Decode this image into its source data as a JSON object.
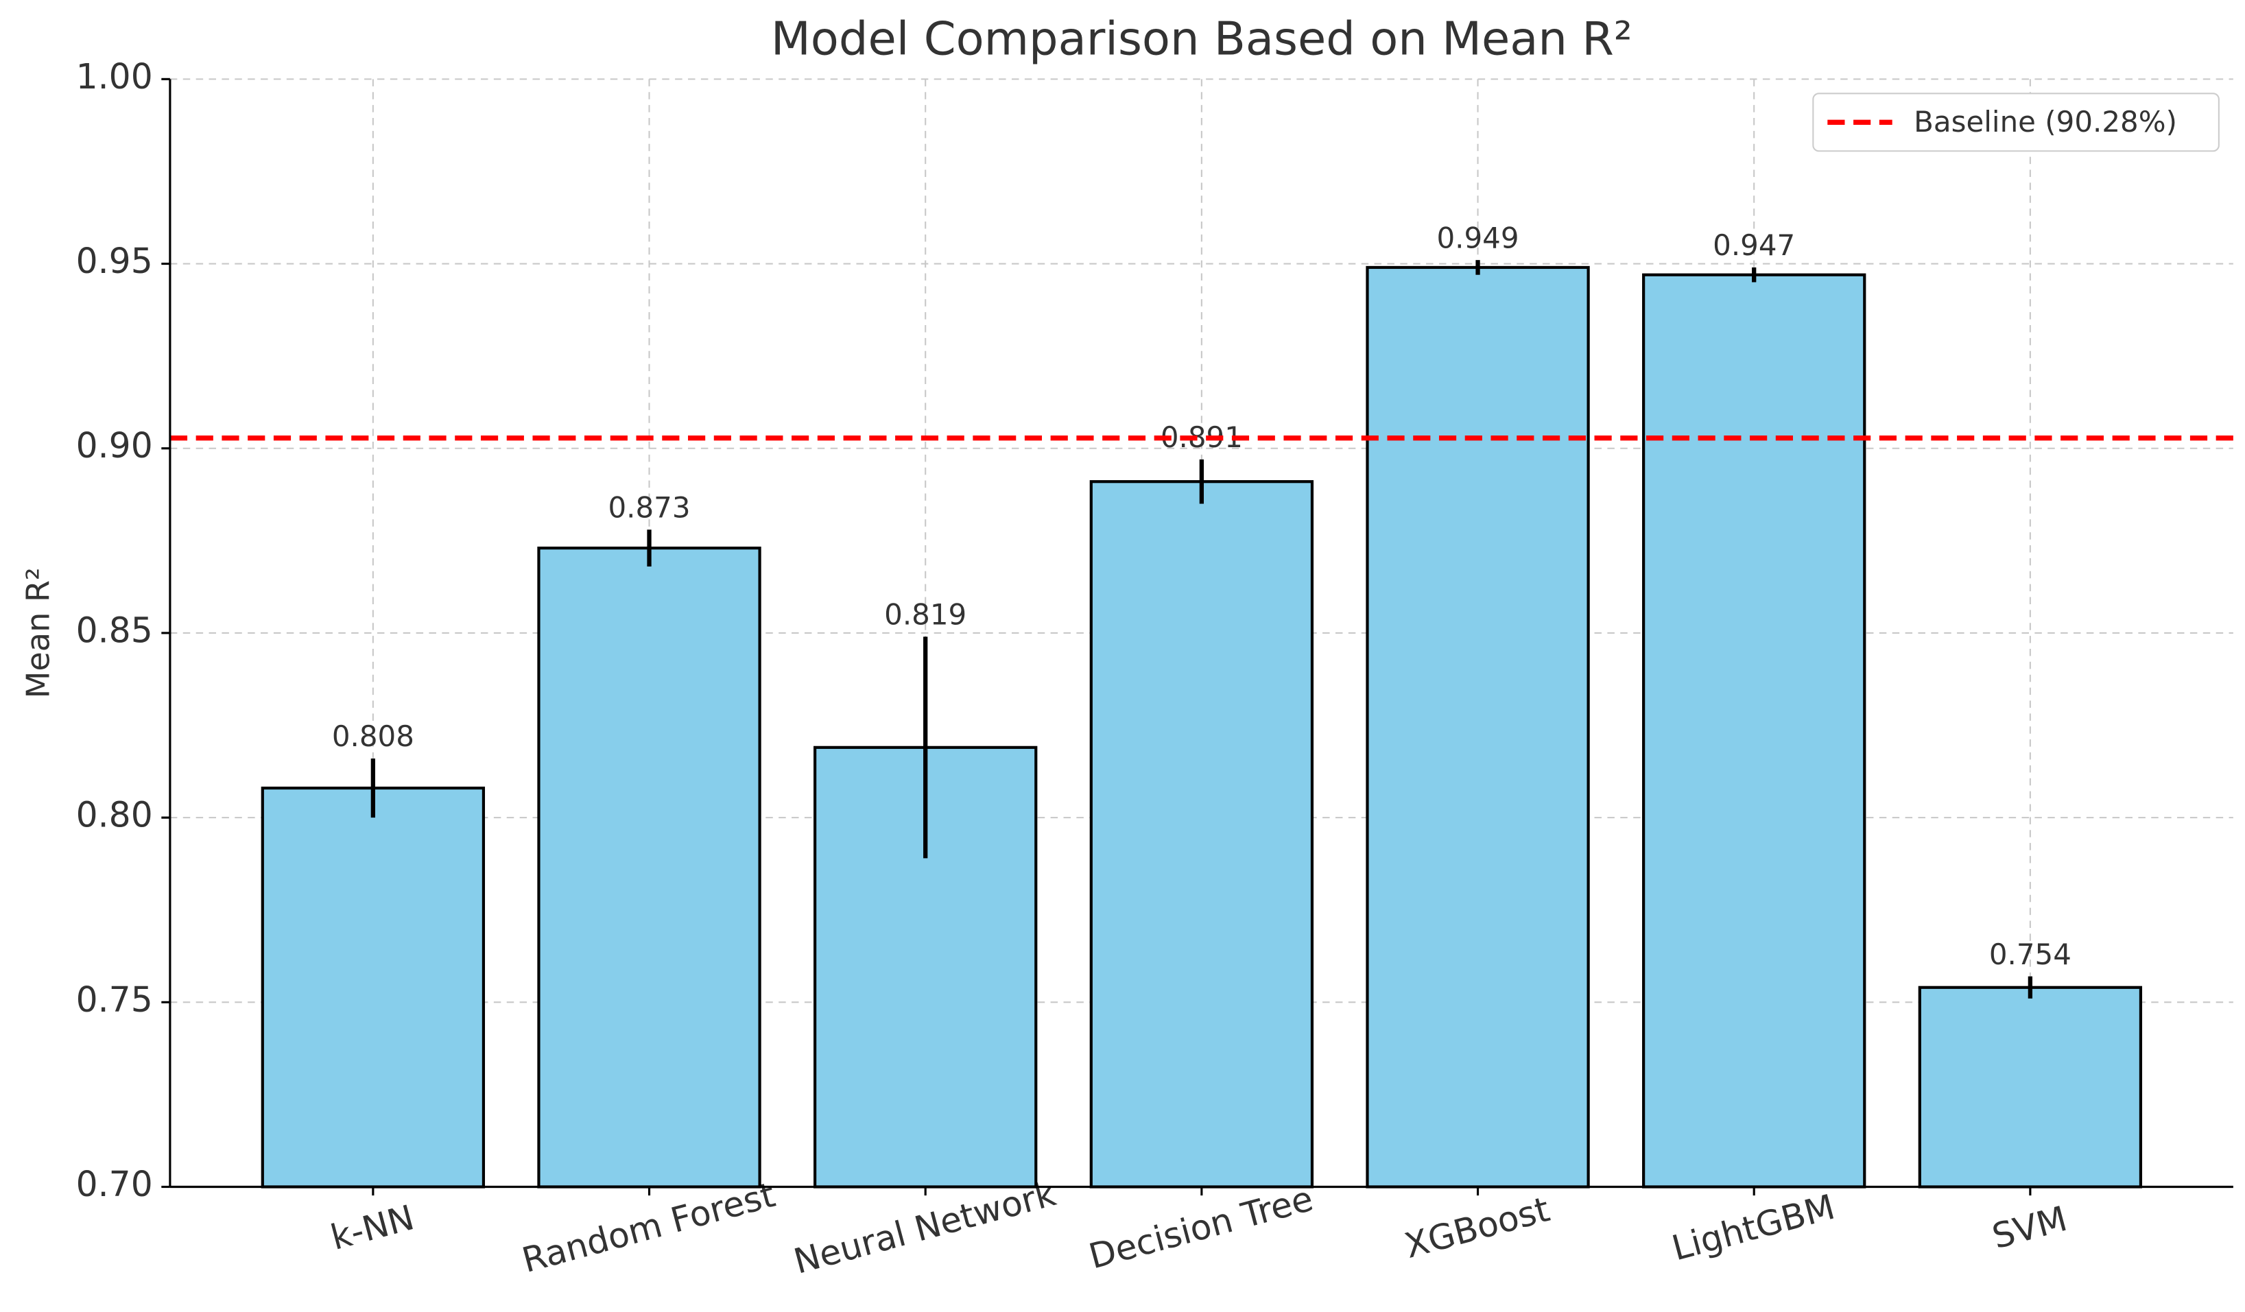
{
  "chart_data": {
    "type": "bar",
    "title": "Model Comparison Based on Mean R²",
    "y_label": "Mean R²",
    "categories": [
      "k-NN",
      "Random Forest",
      "Neural Network",
      "Decision Tree",
      "XGBoost",
      "LightGBM",
      "SVM"
    ],
    "values": [
      0.808,
      0.873,
      0.819,
      0.891,
      0.949,
      0.947,
      0.754
    ],
    "errors": [
      0.008,
      0.005,
      0.03,
      0.006,
      0.002,
      0.002,
      0.003
    ],
    "color": "#87ceeb",
    "ylim": [
      0.7,
      1.0
    ],
    "yticks": [
      {
        "value": 0.7,
        "label": "0.70"
      },
      {
        "value": 0.75,
        "label": "0.75"
      },
      {
        "value": 0.8,
        "label": "0.80"
      },
      {
        "value": 0.85,
        "label": "0.85"
      },
      {
        "value": 0.9,
        "label": "0.90"
      },
      {
        "value": 0.95,
        "label": "0.95"
      },
      {
        "value": 1.0,
        "label": "1.00"
      }
    ],
    "grid": true,
    "baseline": {
      "value": 0.9028,
      "label": "Baseline (90.28%)",
      "color": "#ff0000"
    },
    "legend": "upper right"
  }
}
